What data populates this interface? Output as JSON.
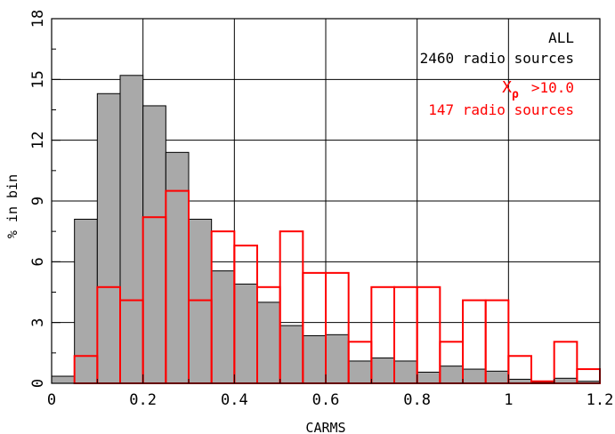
{
  "chart_data": {
    "type": "bar",
    "subtype": "histogram",
    "xlabel": "CARMS",
    "ylabel": "% in bin",
    "xlim": [
      0,
      1.2
    ],
    "ylim": [
      0,
      18
    ],
    "bin_width": 0.05,
    "grid": true,
    "x_ticks": [
      "0",
      "0.2",
      "0.4",
      "0.6",
      "0.8",
      "1",
      "1.2"
    ],
    "x_tick_values": [
      0,
      0.2,
      0.4,
      0.6,
      0.8,
      1.0,
      1.2
    ],
    "y_ticks": [
      "0",
      "3",
      "6",
      "9",
      "12",
      "15",
      "18"
    ],
    "y_tick_values": [
      0,
      3,
      6,
      9,
      12,
      15,
      18
    ],
    "series": [
      {
        "style": "filled",
        "fill": "#a9a9a9",
        "stroke": "#000000",
        "bin_starts": [
          0,
          0.05,
          0.1,
          0.15,
          0.2,
          0.25,
          0.3,
          0.35,
          0.4,
          0.45,
          0.5,
          0.55,
          0.6,
          0.65,
          0.7,
          0.75,
          0.8,
          0.85,
          0.9,
          0.95,
          1.0,
          1.05,
          1.1,
          1.15
        ],
        "values": [
          0.35,
          8.1,
          14.3,
          15.2,
          13.7,
          11.4,
          8.1,
          5.55,
          4.9,
          4.0,
          2.85,
          2.35,
          2.4,
          1.1,
          1.25,
          1.1,
          0.55,
          0.85,
          0.7,
          0.6,
          0.2,
          0.05,
          0.25,
          0.1
        ]
      },
      {
        "style": "outline",
        "stroke": "#ff0000",
        "bin_starts": [
          0,
          0.05,
          0.1,
          0.15,
          0.2,
          0.25,
          0.3,
          0.35,
          0.4,
          0.45,
          0.5,
          0.55,
          0.6,
          0.65,
          0.7,
          0.75,
          0.8,
          0.85,
          0.9,
          0.95,
          1.0,
          1.05,
          1.1,
          1.15
        ],
        "values": [
          0,
          1.35,
          4.75,
          4.1,
          8.2,
          9.5,
          4.1,
          7.5,
          6.8,
          4.75,
          7.5,
          5.45,
          5.45,
          2.05,
          4.75,
          4.75,
          4.75,
          2.05,
          4.1,
          4.1,
          1.35,
          0.1,
          2.05,
          0.7
        ]
      }
    ],
    "annotations": {
      "all_label": "ALL",
      "all_count": "2460 radio sources",
      "subset_symbol": "X",
      "subset_subscript": "ρ",
      "subset_threshold": ">10.0",
      "subset_count": "147 radio sources",
      "all_color": "#000000",
      "subset_color": "#ff0000"
    },
    "legend_position": "top-right"
  }
}
